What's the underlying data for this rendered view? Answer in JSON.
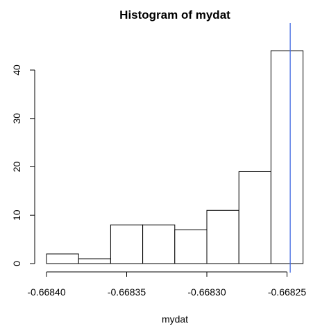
{
  "chart_data": {
    "type": "bar",
    "title": "Histogram of mydat",
    "xlabel": "mydat",
    "ylabel": "",
    "bins": [
      {
        "start": -0.6684,
        "end": -0.66838,
        "count": 2
      },
      {
        "start": -0.66838,
        "end": -0.66836,
        "count": 1
      },
      {
        "start": -0.66836,
        "end": -0.66834,
        "count": 8
      },
      {
        "start": -0.66834,
        "end": -0.66832,
        "count": 8
      },
      {
        "start": -0.66832,
        "end": -0.6683,
        "count": 7
      },
      {
        "start": -0.6683,
        "end": -0.66828,
        "count": 11
      },
      {
        "start": -0.66828,
        "end": -0.66826,
        "count": 19
      },
      {
        "start": -0.66826,
        "end": -0.66824,
        "count": 44
      }
    ],
    "x_ticks": [
      -0.6684,
      -0.66835,
      -0.6683,
      -0.66825
    ],
    "x_tick_labels": [
      "-0.66840",
      "-0.66835",
      "-0.66830",
      "-0.66825"
    ],
    "y_ticks": [
      0,
      10,
      20,
      30,
      40
    ],
    "y_tick_labels": [
      "0",
      "10",
      "20",
      "30",
      "40"
    ],
    "vline": {
      "x": -0.668248,
      "color": "#4169e1"
    },
    "xlim": [
      -0.6684,
      -0.66824
    ],
    "ylim": [
      0,
      44
    ],
    "grid": false
  }
}
